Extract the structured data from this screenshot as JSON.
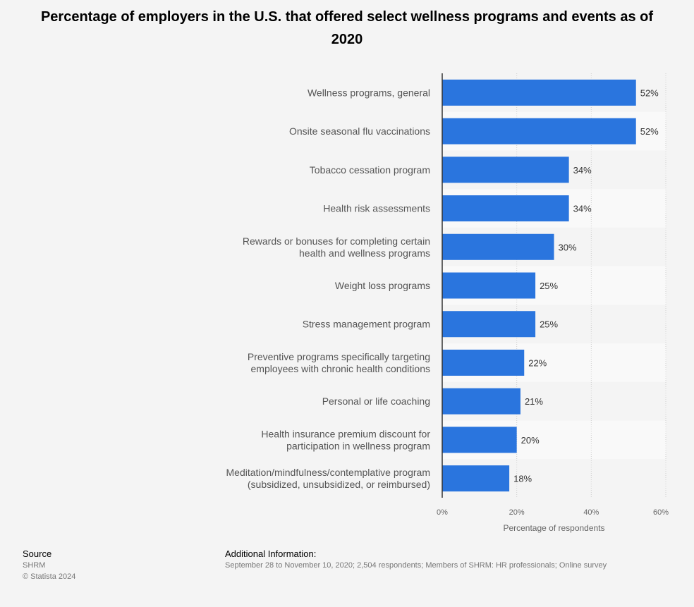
{
  "chart_data": {
    "type": "bar",
    "orientation": "horizontal",
    "title": "Percentage of employers in the U.S. that offered select wellness programs and events as of 2020",
    "xlabel": "Percentage of respondents",
    "xlim": [
      0,
      60
    ],
    "xticks": [
      "0%",
      "20%",
      "40%",
      "60%"
    ],
    "grid": true,
    "categories": [
      [
        "Wellness programs, general"
      ],
      [
        "Onsite seasonal flu vaccinations"
      ],
      [
        "Tobacco cessation program"
      ],
      [
        "Health risk assessments"
      ],
      [
        "Rewards or bonuses for completing certain",
        "health and wellness programs"
      ],
      [
        "Weight loss programs"
      ],
      [
        "Stress management program"
      ],
      [
        "Preventive programs specifically targeting",
        "employees with chronic health conditions"
      ],
      [
        "Personal or life coaching"
      ],
      [
        "Health insurance premium discount for",
        "participation in wellness program"
      ],
      [
        "Meditation/mindfulness/contemplative program",
        "(subsidized, unsubsidized, or reimbursed)"
      ]
    ],
    "values": [
      52,
      52,
      34,
      34,
      30,
      25,
      25,
      22,
      21,
      20,
      18
    ],
    "value_labels": [
      "52%",
      "52%",
      "34%",
      "34%",
      "30%",
      "25%",
      "25%",
      "22%",
      "21%",
      "20%",
      "18%"
    ],
    "bar_color": "#2a75de"
  },
  "footer": {
    "source_heading": "Source",
    "source_name": "SHRM",
    "copyright": "© Statista 2024",
    "info_heading": "Additional Information:",
    "info_text": "September 28 to November 10, 2020; 2,504 respondents; Members of SHRM: HR professionals; Online survey"
  }
}
